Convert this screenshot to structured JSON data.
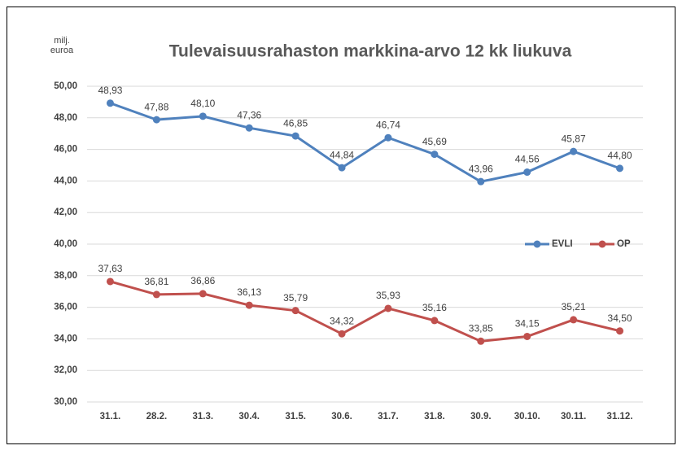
{
  "chart_data": {
    "type": "line",
    "title": "Tulevaisuusrahaston markkina-arvo 12 kk liukuva",
    "y_label": "milj. euroa",
    "categories": [
      "31.1.",
      "28.2.",
      "31.3.",
      "30.4.",
      "31.5.",
      "30.6.",
      "31.7.",
      "31.8.",
      "30.9.",
      "30.10.",
      "30.11.",
      "31.12."
    ],
    "series": [
      {
        "name": "EVLI",
        "color": "#4f81bd",
        "values": [
          48.93,
          47.88,
          48.1,
          47.36,
          46.85,
          44.84,
          46.74,
          45.69,
          43.96,
          44.56,
          45.87,
          44.8
        ],
        "value_labels": [
          "48,93",
          "47,88",
          "48,10",
          "47,36",
          "46,85",
          "44,84",
          "46,74",
          "45,69",
          "43,96",
          "44,56",
          "45,87",
          "44,80"
        ]
      },
      {
        "name": "OP",
        "color": "#c0504d",
        "values": [
          37.63,
          36.81,
          36.86,
          36.13,
          35.79,
          34.32,
          35.93,
          35.16,
          33.85,
          34.15,
          35.21,
          34.5
        ],
        "value_labels": [
          "37,63",
          "36,81",
          "36,86",
          "36,13",
          "35,79",
          "34,32",
          "35,93",
          "35,16",
          "33,85",
          "34,15",
          "35,21",
          "34,50"
        ]
      }
    ],
    "ylim": [
      30,
      50
    ],
    "yticks": [
      {
        "value": 30,
        "label": "30,00"
      },
      {
        "value": 32,
        "label": "32,00"
      },
      {
        "value": 34,
        "label": "34,00"
      },
      {
        "value": 36,
        "label": "36,00"
      },
      {
        "value": 38,
        "label": "38,00"
      },
      {
        "value": 40,
        "label": "40,00"
      },
      {
        "value": 42,
        "label": "42,00"
      },
      {
        "value": 44,
        "label": "44,00"
      },
      {
        "value": 46,
        "label": "46,00"
      },
      {
        "value": 48,
        "label": "48,00"
      },
      {
        "value": 50,
        "label": "50,00"
      }
    ],
    "grid": true,
    "legend": "right"
  }
}
